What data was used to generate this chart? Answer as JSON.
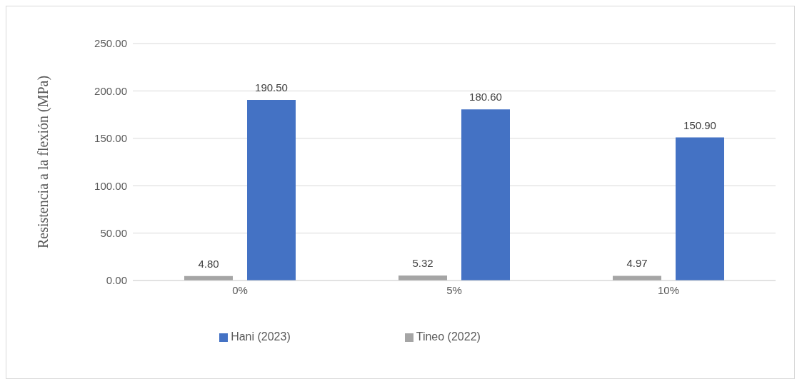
{
  "chart_data": {
    "type": "bar",
    "ylabel": "Resistencia a la flexión  (MPa)",
    "categories": [
      "0%",
      "5%",
      "10%"
    ],
    "series": [
      {
        "name": "Tineo (2022)",
        "color": "#a5a5a5",
        "values": [
          4.8,
          5.32,
          4.97
        ],
        "value_labels": [
          "4.80",
          "5.32",
          "4.97"
        ]
      },
      {
        "name": "Hani (2023)",
        "color": "#4472c4",
        "values": [
          190.5,
          180.6,
          150.9
        ],
        "value_labels": [
          "190.50",
          "180.60",
          "150.90"
        ]
      }
    ],
    "ylim": [
      0,
      250
    ],
    "yticks": [
      {
        "value": 0,
        "label": "0.00"
      },
      {
        "value": 50,
        "label": "50.00"
      },
      {
        "value": 100,
        "label": "100.00"
      },
      {
        "value": 150,
        "label": "150.00"
      },
      {
        "value": 200,
        "label": "200.00"
      },
      {
        "value": 250,
        "label": "250.00"
      }
    ],
    "grid": "y",
    "legend": "bottom"
  }
}
